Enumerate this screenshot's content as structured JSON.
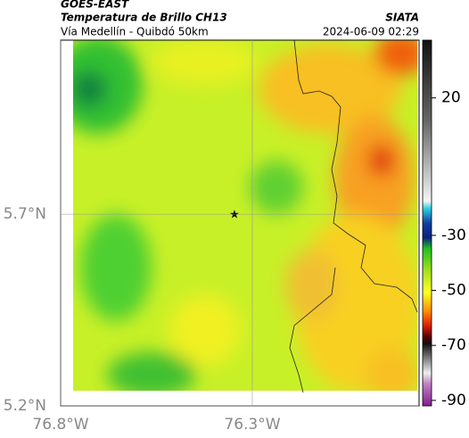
{
  "header": {
    "title": "GOES-EAST",
    "subtitle": "Temperatura de Brillo CH13",
    "location": "Vía Medellín - Quibdó 50km",
    "source": "SIATA",
    "datetime": "2024-06-09 02:29"
  },
  "map": {
    "xlim": [
      -76.8,
      -75.865
    ],
    "ylim": [
      5.2,
      6.154
    ],
    "xticks": [
      {
        "value": -76.8,
        "label": "76.8°W"
      },
      {
        "value": -76.3,
        "label": "76.3°W"
      }
    ],
    "yticks": [
      {
        "value": 5.2,
        "label": "5.2°N"
      },
      {
        "value": 5.7,
        "label": "5.7°N"
      }
    ],
    "grid": true
  },
  "colorbar": {
    "lim": [
      -92,
      41
    ],
    "ticks": [
      20,
      -30,
      -50,
      -70,
      -90
    ]
  }
}
